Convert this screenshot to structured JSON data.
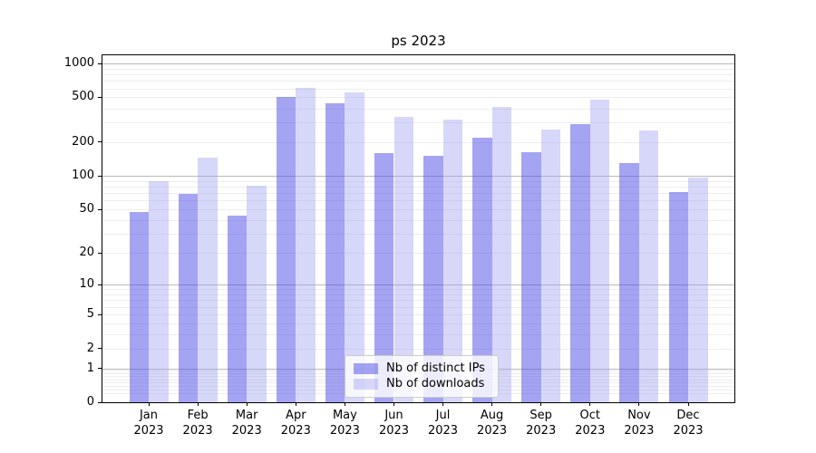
{
  "figure": {
    "title": "ps 2023"
  },
  "legend": {
    "items": [
      {
        "label": "Nb of distinct IPs"
      },
      {
        "label": "Nb of downloads"
      }
    ]
  },
  "chart_data": {
    "type": "bar",
    "title": "ps 2023",
    "categories": [
      "Jan 2023",
      "Feb 2023",
      "Mar 2023",
      "Apr 2023",
      "May 2023",
      "Jun 2023",
      "Jul 2023",
      "Aug 2023",
      "Sep 2023",
      "Oct 2023",
      "Nov 2023",
      "Dec 2023"
    ],
    "series": [
      {
        "name": "Nb of distinct IPs",
        "color": "rgba(80,80,232,0.52)",
        "values": [
          47,
          69,
          44,
          500,
          440,
          160,
          150,
          220,
          163,
          290,
          130,
          72
        ]
      },
      {
        "name": "Nb of downloads",
        "color": "rgba(160,160,240,0.42)",
        "values": [
          90,
          145,
          82,
          610,
          555,
          335,
          320,
          410,
          258,
          480,
          255,
          97
        ]
      }
    ],
    "yscale": "log1p",
    "yticks": [
      0,
      1,
      2,
      5,
      10,
      20,
      50,
      100,
      200,
      500,
      1000
    ],
    "ylim": [
      0,
      1180
    ],
    "xlabel": "",
    "ylabel": "",
    "grid": {
      "major_ticks": [
        1,
        10,
        100,
        1000
      ],
      "major_color": "#b9b9b9",
      "minor_color": "#ededed"
    },
    "legend_position": "lower-center",
    "bar_group_width_fraction": 0.8
  }
}
